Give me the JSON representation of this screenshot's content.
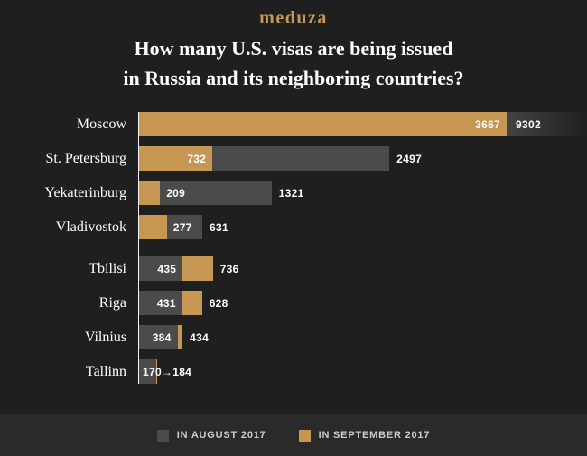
{
  "logo": "meduza",
  "title": {
    "line1": "How many U.S. visas are being issued",
    "line2": "in Russia and its neighboring countries?"
  },
  "colors": {
    "background": "#1f1f1f",
    "august": "#4b4b4b",
    "september": "#c59753",
    "axis": "#f2f2f2",
    "value_text": "#ffffff",
    "legend_background": "#2a2a2a",
    "legend_text": "#cccccc"
  },
  "legend": {
    "items": [
      {
        "label": "IN AUGUST 2017",
        "series": "august"
      },
      {
        "label": "IN SEPTEMBER 2017",
        "series": "september"
      }
    ]
  },
  "chart_data": {
    "type": "bar",
    "orientation": "horizontal",
    "title": "How many U.S. visas are being issued in Russia and its neighboring countries?",
    "series": [
      {
        "name": "IN AUGUST 2017",
        "color": "#4b4b4b"
      },
      {
        "name": "IN SEPTEMBER 2017",
        "color": "#c59753"
      }
    ],
    "groups": [
      {
        "rows": [
          {
            "city": "Moscow",
            "august": 9302,
            "september": 3667
          },
          {
            "city": "St. Petersburg",
            "august": 2497,
            "september": 732
          },
          {
            "city": "Yekaterinburg",
            "august": 1321,
            "september": 209
          },
          {
            "city": "Vladivostok",
            "august": 631,
            "september": 277
          }
        ]
      },
      {
        "rows": [
          {
            "city": "Tbilisi",
            "august": 435,
            "september": 736
          },
          {
            "city": "Riga",
            "august": 431,
            "september": 628
          },
          {
            "city": "Vilnius",
            "august": 384,
            "september": 434
          },
          {
            "city": "Tallinn",
            "august": 170,
            "september": 184,
            "compact_label": "170→184"
          }
        ]
      }
    ]
  }
}
